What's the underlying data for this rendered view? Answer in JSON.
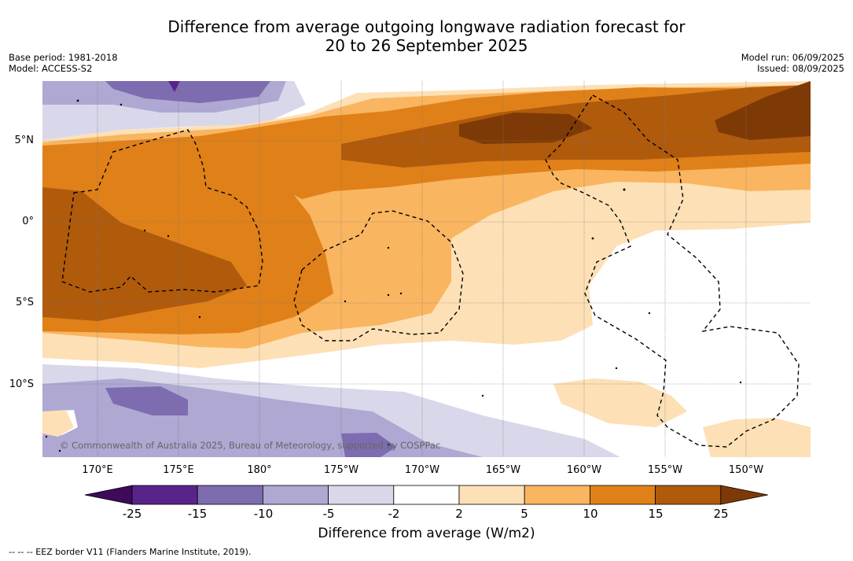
{
  "title_line1": "Difference from average outgoing longwave radiation forecast for",
  "title_line2": "20 to 26 September 2025",
  "base_period": "Base period: 1981-2018",
  "model": "Model: ACCESS-S2",
  "model_run": "Model run: 06/09/2025",
  "issued": "Issued: 08/09/2025",
  "lat_labels": [
    "5°N",
    "0°",
    "5°S",
    "10°S"
  ],
  "lon_labels": [
    "170°E",
    "175°E",
    "180°",
    "175°W",
    "170°W",
    "165°W",
    "160°W",
    "155°W",
    "150°W"
  ],
  "copyright": "© Commonwealth of Australia 2025, Bureau of Meteorology, supported by COSPPac",
  "colorbar": {
    "ticks": [
      "-25",
      "-15",
      "-10",
      "-5",
      "-2",
      "2",
      "5",
      "10",
      "15",
      "25"
    ],
    "colors": [
      "#3d0a5c",
      "#58248a",
      "#7d6caf",
      "#aea8d3",
      "#d8d8ea",
      "#ffffff",
      "#fde0b6",
      "#f9b560",
      "#e08018",
      "#b05a0c",
      "#7e3a06"
    ],
    "label": "Difference from average (W/m2)"
  },
  "footer": "-- -- -- EEZ border V11 (Flanders Marine Institute, 2019)."
}
